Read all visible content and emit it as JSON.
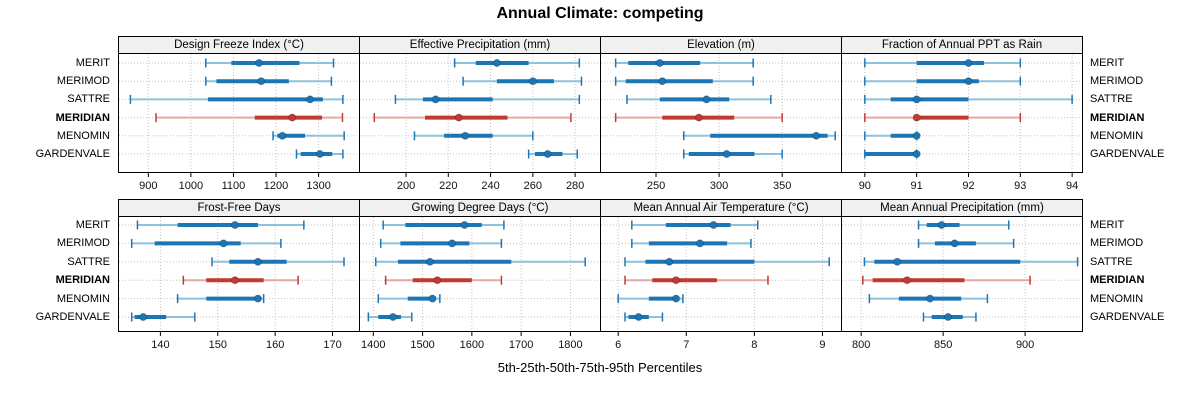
{
  "title": "Annual Climate: competing",
  "caption": "5th-25th-50th-75th-95th Percentiles",
  "categories": [
    "MERIT",
    "MERIMOD",
    "SATTRE",
    "MERIDIAN",
    "MENOMIN",
    "GARDENVALE"
  ],
  "highlight_category": "MERIDIAN",
  "colors": {
    "series_main": "#1d76b4",
    "series_light": "#8fc0dc",
    "highlight_main": "#c03a30",
    "highlight_light": "#e3a9a4",
    "gridline": "#c3c3c3",
    "strip_bg": "#f0f0f0",
    "panel_border": "#000000",
    "text": "#111111"
  },
  "chart_data": {
    "type": "dotplot-percentile-intervals",
    "percentiles": [
      5,
      25,
      50,
      75,
      95
    ],
    "layout": {
      "rows": 2,
      "cols": 4
    },
    "legend_note": "each row shows 5th-95th whisker with caps, 25th-75th thick bar, dot at median; MERIDIAN highlighted in red",
    "panels": [
      {
        "title": "Design Freeze Index (°C)",
        "ticks": [
          900,
          1000,
          1100,
          1200,
          1300
        ],
        "xlim": [
          830,
          1396
        ],
        "values": [
          [
            1035,
            1095,
            1160,
            1255,
            1335
          ],
          [
            1035,
            1060,
            1165,
            1230,
            1330
          ],
          [
            858,
            1040,
            1280,
            1310,
            1357
          ],
          [
            918,
            1150,
            1238,
            1308,
            1356
          ],
          [
            1193,
            1203,
            1215,
            1268,
            1360
          ],
          [
            1248,
            1258,
            1303,
            1332,
            1357
          ]
        ]
      },
      {
        "title": "Effective Precipitation (mm)",
        "ticks": [
          200,
          220,
          240,
          260,
          280
        ],
        "xlim": [
          178,
          292
        ],
        "values": [
          [
            223,
            233,
            243,
            258,
            282
          ],
          [
            227,
            243,
            260,
            270,
            283
          ],
          [
            195,
            208,
            214,
            241,
            282
          ],
          [
            185,
            209,
            225,
            248,
            278
          ],
          [
            204,
            218,
            228,
            241,
            260
          ],
          [
            258,
            261,
            267,
            274,
            281
          ]
        ]
      },
      {
        "title": "Elevation (m)",
        "ticks": [
          250,
          300,
          350
        ],
        "xlim": [
          206,
          397
        ],
        "values": [
          [
            218,
            228,
            253,
            285,
            327
          ],
          [
            218,
            226,
            255,
            295,
            327
          ],
          [
            227,
            253,
            290,
            308,
            341
          ],
          [
            218,
            255,
            284,
            312,
            350
          ],
          [
            272,
            293,
            377,
            386,
            392
          ],
          [
            272,
            276,
            306,
            328,
            350
          ]
        ]
      },
      {
        "title": "Fraction of Annual PPT as Rain",
        "ticks": [
          90,
          91,
          92,
          93,
          94
        ],
        "xlim": [
          89.55,
          94.2
        ],
        "values": [
          [
            90,
            91,
            92,
            92.3,
            93
          ],
          [
            90,
            91,
            92,
            92.2,
            93
          ],
          [
            90,
            90.5,
            91,
            92,
            94
          ],
          [
            90,
            91,
            91,
            92,
            93
          ],
          [
            90,
            90.5,
            91,
            91,
            91
          ],
          [
            90,
            90,
            91,
            91,
            91
          ]
        ]
      },
      {
        "title": "Frost-Free Days",
        "ticks": [
          140,
          150,
          160,
          170
        ],
        "xlim": [
          132.7,
          174.7
        ],
        "values": [
          [
            136,
            143,
            153,
            157,
            165
          ],
          [
            135,
            139,
            151,
            154,
            161
          ],
          [
            149,
            152,
            157,
            162,
            172
          ],
          [
            144,
            148,
            153,
            158,
            164
          ],
          [
            143,
            148,
            157,
            157.5,
            158
          ],
          [
            135,
            135.5,
            137,
            141,
            146
          ]
        ]
      },
      {
        "title": "Growing Degree Days (°C)",
        "ticks": [
          1400,
          1500,
          1600,
          1700,
          1800
        ],
        "xlim": [
          1372,
          1861
        ],
        "values": [
          [
            1420,
            1465,
            1585,
            1620,
            1665
          ],
          [
            1415,
            1455,
            1560,
            1595,
            1660
          ],
          [
            1405,
            1450,
            1515,
            1680,
            1830
          ],
          [
            1425,
            1480,
            1530,
            1600,
            1660
          ],
          [
            1410,
            1470,
            1520,
            1527,
            1535
          ],
          [
            1390,
            1410,
            1440,
            1456,
            1478
          ]
        ]
      },
      {
        "title": "Mean Annual Air Temperature (°C)",
        "ticks": [
          6,
          7,
          8,
          9
        ],
        "xlim": [
          5.74,
          9.28
        ],
        "values": [
          [
            6.2,
            6.7,
            7.4,
            7.65,
            8.05
          ],
          [
            6.2,
            6.45,
            7.2,
            7.6,
            7.95
          ],
          [
            6.1,
            6.4,
            6.75,
            8.0,
            9.1
          ],
          [
            6.1,
            6.5,
            6.85,
            7.45,
            8.2
          ],
          [
            6.0,
            6.45,
            6.85,
            6.9,
            6.95
          ],
          [
            6.1,
            6.15,
            6.3,
            6.45,
            6.65
          ]
        ]
      },
      {
        "title": "Mean Annual Precipitation (mm)",
        "ticks": [
          800,
          850,
          900
        ],
        "xlim": [
          788,
          935
        ],
        "values": [
          [
            835,
            840,
            849,
            860,
            890
          ],
          [
            835,
            845,
            857,
            870,
            893
          ],
          [
            802,
            808,
            822,
            897,
            932
          ],
          [
            801,
            807,
            828,
            863,
            903
          ],
          [
            805,
            823,
            842,
            861,
            877
          ],
          [
            838,
            843,
            853,
            862,
            870
          ]
        ]
      }
    ]
  }
}
